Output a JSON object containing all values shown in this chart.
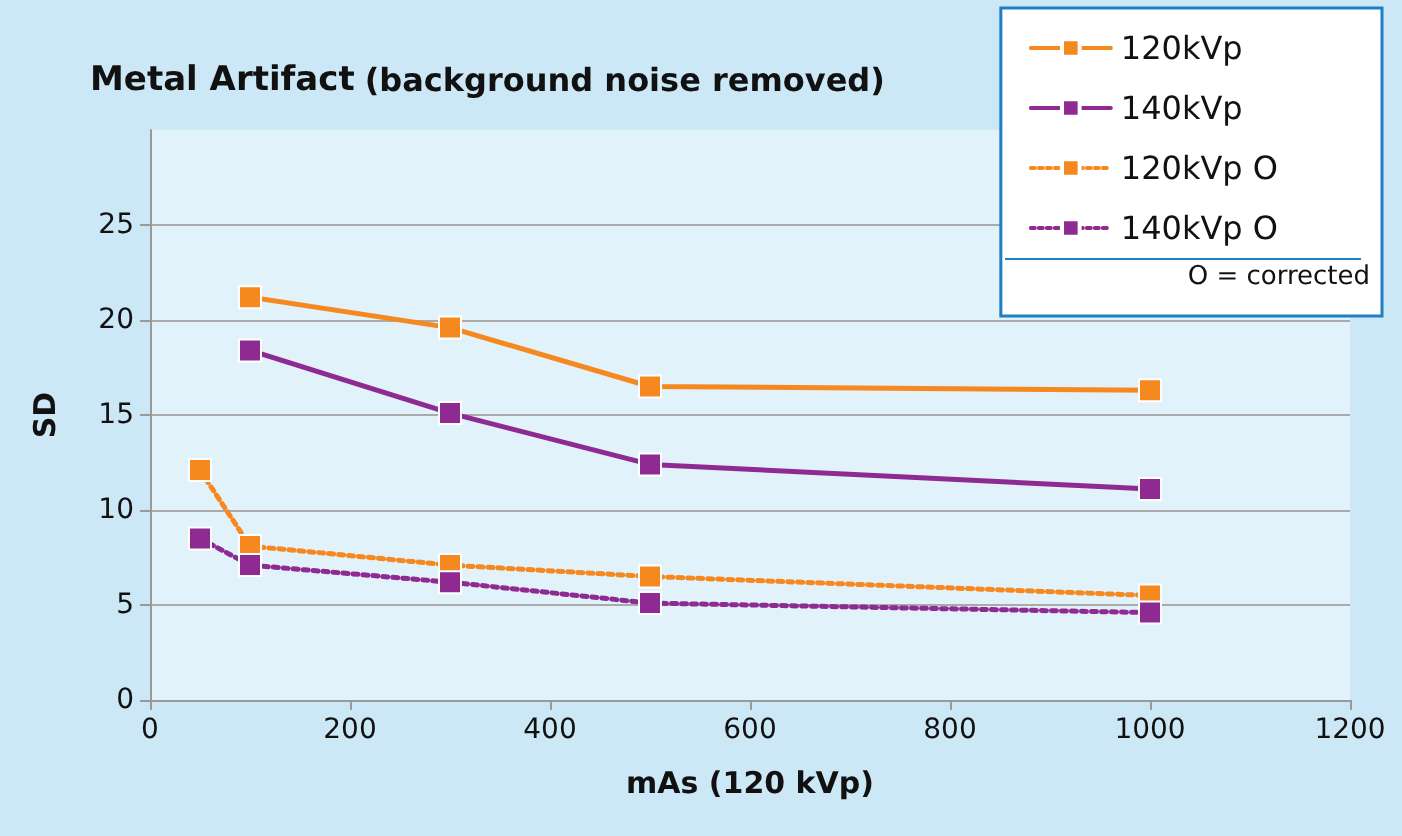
{
  "chart_data": {
    "type": "line",
    "title": "Metal Artifact",
    "subtitle": "(background noise removed)",
    "xlabel": "mAs (120 kVp)",
    "ylabel": "SD",
    "x": [
      100,
      300,
      500,
      1000
    ],
    "series": [
      {
        "name": "120kVp",
        "color": "#f5891f",
        "line_style": "solid",
        "values": [
          21.2,
          19.6,
          16.5,
          16.3
        ]
      },
      {
        "name": "140kVp",
        "color": "#8e2a91",
        "line_style": "solid",
        "values": [
          18.4,
          15.1,
          12.4,
          11.1
        ]
      },
      {
        "name": "120kVp O",
        "color": "#f5891f",
        "line_style": "dotted",
        "x": [
          50,
          100,
          300,
          500,
          1000
        ],
        "values": [
          12.1,
          8.1,
          7.1,
          6.5,
          5.5
        ]
      },
      {
        "name": "140kVp O",
        "color": "#8e2a91",
        "line_style": "dotted",
        "x": [
          50,
          100,
          300,
          500,
          1000
        ],
        "values": [
          8.5,
          7.1,
          6.2,
          5.1,
          4.6
        ]
      }
    ],
    "xlim": [
      0,
      1200
    ],
    "xticks": [
      0,
      200,
      400,
      600,
      800,
      1000,
      1200
    ],
    "ylim": [
      0,
      30
    ],
    "yticks": [
      0,
      5,
      10,
      15,
      20,
      25
    ],
    "grid": "y",
    "legend": "top right",
    "marker": "square",
    "annotations": [
      "O = corrected"
    ]
  }
}
